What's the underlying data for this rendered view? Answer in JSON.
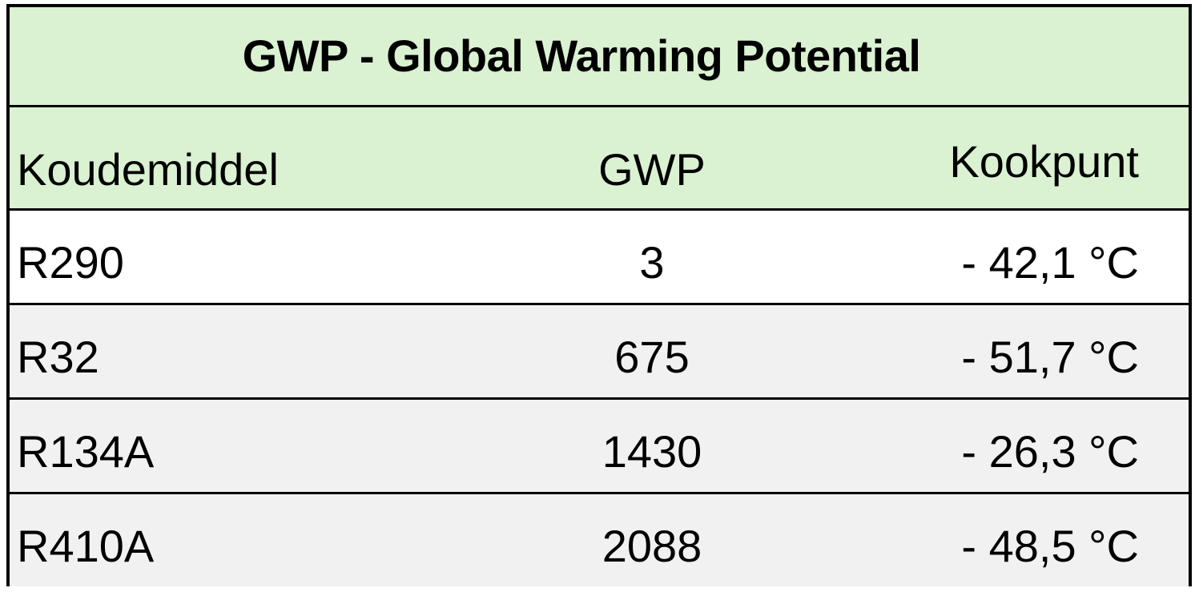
{
  "table": {
    "title": "GWP - Global Warming Potential",
    "headers": [
      "Koudemiddel",
      "GWP",
      "Kookpunt"
    ],
    "rows": [
      [
        "R290",
        "3",
        "- 42,1 °C"
      ],
      [
        "R32",
        "675",
        "- 51,7 °C"
      ],
      [
        "R134A",
        "1430",
        "- 26,3 °C"
      ],
      [
        "R410A",
        "2088",
        "- 48,5 °C"
      ]
    ]
  },
  "colors": {
    "header_bg": "#daf1d2",
    "row_alt_bg": "#f1f1f1",
    "border": "#000000"
  }
}
